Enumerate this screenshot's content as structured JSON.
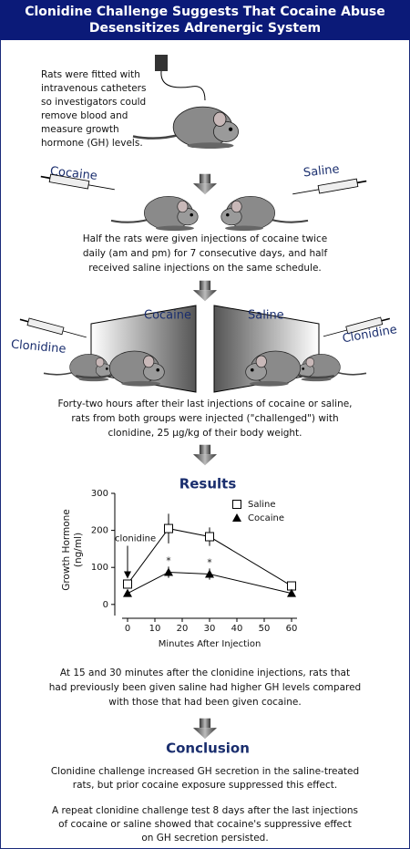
{
  "header": {
    "title_lines": [
      "Clonidine Challenge Suggests That Cocaine Abuse",
      "Desensitizes Adrenergic System"
    ]
  },
  "step1": {
    "lines": [
      "Rats were fitted with",
      "intravenous catheters",
      "so investigators could",
      "remove blood and",
      "measure growth",
      "hormone (GH) levels."
    ]
  },
  "step2": {
    "labels": [
      "Cocaine",
      "Saline"
    ],
    "lines": [
      "Half the rats were given injections of cocaine twice",
      "daily (am and pm) for 7 consecutive days, and half",
      "received saline injections on the same schedule."
    ]
  },
  "step3": {
    "panel_labels": [
      "Cocaine",
      "Saline"
    ],
    "syringe_labels": [
      "Clonidine",
      "Clonidine"
    ],
    "lines": [
      "Forty-two hours after their last injections of cocaine or saline,",
      "rats from both groups were injected (\"challenged\") with",
      "clonidine, 25 µg/kg of their body weight."
    ]
  },
  "results": {
    "heading": "Results",
    "lines": [
      "At 15 and 30 minutes after the clonidine injections, rats that",
      "had previously been given saline had higher GH levels compared",
      "with those that had been given cocaine."
    ]
  },
  "chart_data": {
    "type": "line",
    "x": [
      0,
      15,
      30,
      60
    ],
    "xlabel": "Minutes After Injection",
    "ylabel_lines": [
      "Growth Hormone",
      "(ng/ml)"
    ],
    "xlim": [
      -2,
      62
    ],
    "xticks": [
      0,
      10,
      20,
      30,
      40,
      50,
      60
    ],
    "ylim": [
      -30,
      300
    ],
    "yticks": [
      0,
      100,
      200,
      300
    ],
    "legend": "upper-right",
    "series": [
      {
        "name": "Saline",
        "color": "#000000",
        "marker": "open-square",
        "values": [
          55,
          205,
          183,
          50
        ],
        "errors": [
          null,
          40,
          25,
          null
        ]
      },
      {
        "name": "Cocaine",
        "color": "#000000",
        "marker": "filled-triangle",
        "values": [
          30,
          87,
          82,
          30
        ],
        "errors": [
          null,
          15,
          15,
          null
        ]
      }
    ],
    "annotations": [
      {
        "text": "*",
        "x": 15
      },
      {
        "text": "*",
        "x": 30
      },
      {
        "text": "clonidine",
        "x": 0
      }
    ]
  },
  "conclusion": {
    "heading": "Conclusion",
    "paragraph1": [
      "Clonidine challenge increased GH secretion in the saline-treated",
      "rats, but prior cocaine exposure suppressed this effect."
    ],
    "paragraph2": [
      "A repeat clonidine challenge test 8 days after the last injections",
      "of cocaine or saline showed that cocaine's suppressive effect",
      "on GH secretion persisted."
    ]
  }
}
